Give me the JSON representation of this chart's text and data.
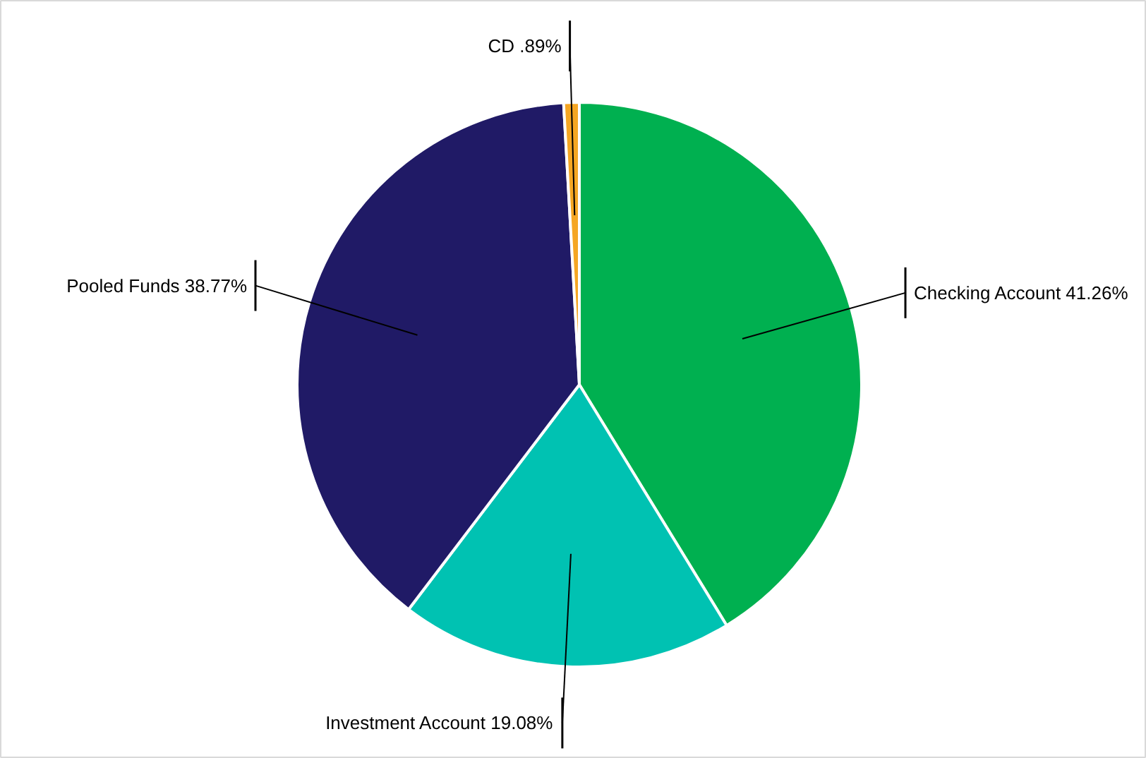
{
  "chart_data": {
    "type": "pie",
    "categories": [
      "Checking Account",
      "Investment Account",
      "Pooled Funds",
      "CD"
    ],
    "values": [
      41.26,
      19.08,
      38.77,
      0.89
    ],
    "colors": [
      "#00b050",
      "#00c2b2",
      "#201a66",
      "#f5a623"
    ],
    "value_labels": [
      "41.26%",
      "19.08%",
      "38.77%",
      ".89%"
    ]
  }
}
